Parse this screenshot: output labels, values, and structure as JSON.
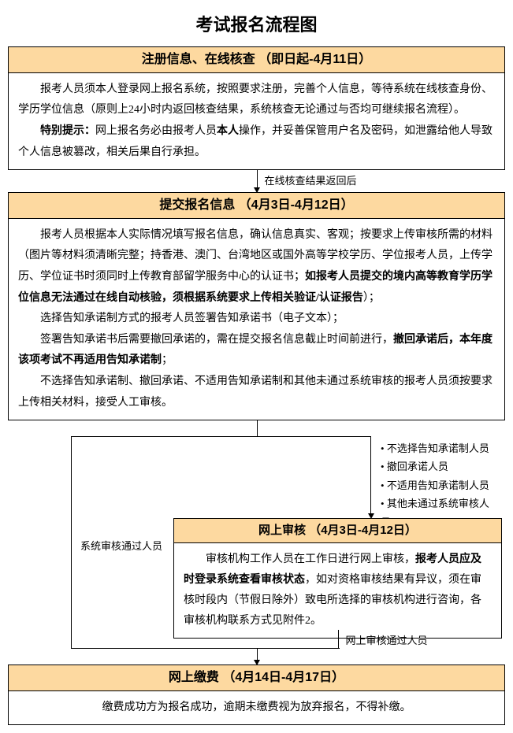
{
  "title": "考试报名流程图",
  "colors": {
    "header_bg": "#fdd9a0",
    "border": "#000000",
    "text": "#000000",
    "background": "#ffffff"
  },
  "step1": {
    "header": "注册信息、在线核查 （即日起-4月11日）",
    "para1": "报考人员须本人登录网上报名系统，按照要求注册，完善个人信息，等待系统在线核查身份、学历学位信息（原则上24小时内返回核查结果，系统核查无论通过与否均可继续报名流程）。",
    "para2_prefix": "特别提示：",
    "para2_rest": "网上报名务必由报考人员",
    "para2_bold2": "本人",
    "para2_rest2": "操作，并妥善保管用户名及密码，如泄露给他人导致个人信息被篡改，相关后果自行承担。"
  },
  "connector1_label": "在线核查结果返回后",
  "step2": {
    "header": "提交报名信息 （4月3日-4月12日）",
    "para1_a": "报考人员根据本人实际情况填写报名信息，确认信息真实、客观；按要求上传审核所需的材料（图片等材料须清晰完整；持香港、澳门、台湾地区或国外高等学校学历、学位报考人员，上传学历、学位证书时须同时上传教育部留学服务中心的认证书；",
    "para1_bold": "如报考人员提交的境内高等教育学历学位信息无法通过在线自动核验，须根据系统要求上传相关验证/认证报告",
    "para1_b": "）；",
    "para2": "选择告知承诺制方式的报考人员签署告知承诺书（电子文本）；",
    "para3_a": "签署告知承诺书后需要撤回承诺的，需在提交报名信息截止时间前进行，",
    "para3_bold": "撤回承诺后，本年度该项考试不再适用告知承诺制",
    "para3_b": "；",
    "para4": "不选择告知承诺制、撤回承诺、不适用告知承诺制和其他未通过系统审核的报考人员须按要求上传相关材料，接受人工审核。"
  },
  "split": {
    "left_label": "系统审核通过人员",
    "bullets": [
      "不选择告知承诺制人员",
      "撤回承诺人员",
      "不适用告知承诺制人员",
      "其他未通过系统审核人员"
    ],
    "review_header": "网上审核 （4月3日-4月12日）",
    "review_para_a": "审核机构工作人员在工作日进行网上审核，",
    "review_bold": "报考人员应及时登录系统查看审核状态",
    "review_para_b": "，如对资格审核结果有异议，须在审核时段内（节假日除外）致电所选择的审核机构进行咨询，各审核机构联系方式见附件2。",
    "below_label": "网上审核通过人员"
  },
  "step4": {
    "header": "网上缴费 （4月14日-4月17日）",
    "body": "缴费成功方为报名成功，逾期未缴费视为放弃报名，不得补缴。"
  }
}
